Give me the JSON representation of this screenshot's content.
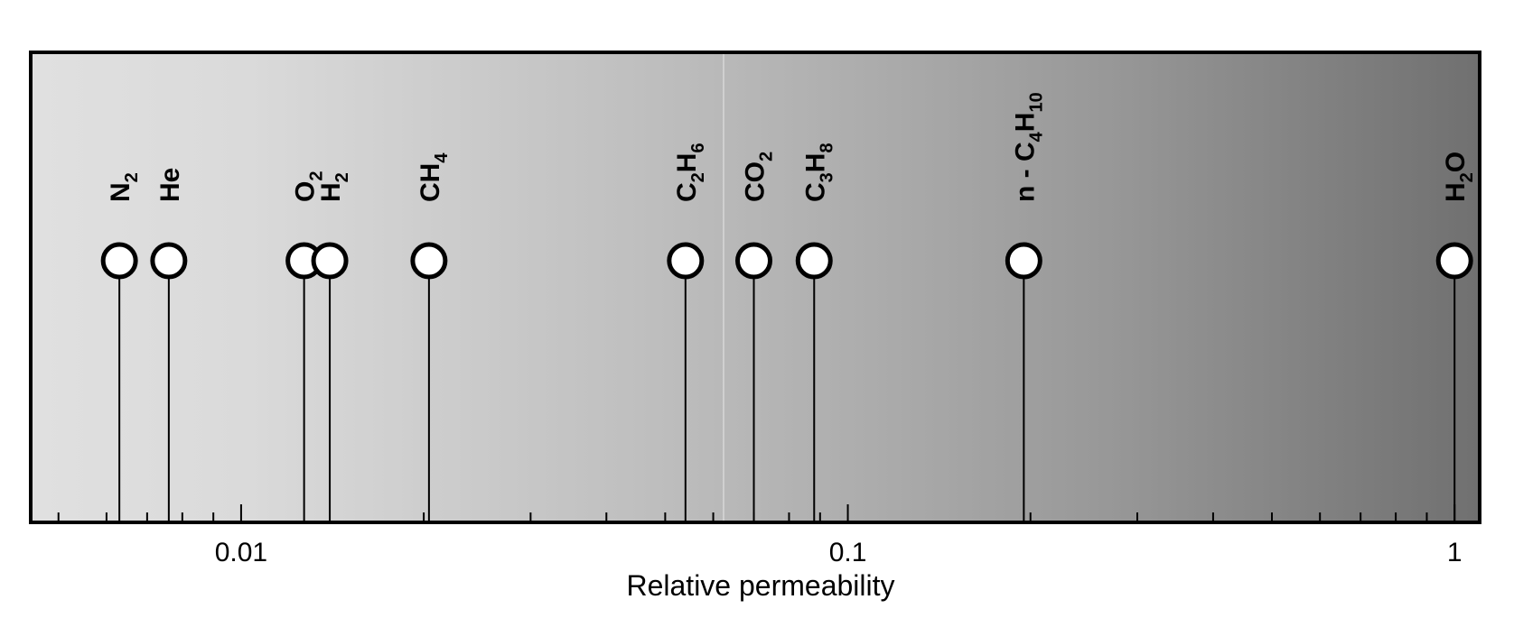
{
  "chart_data": {
    "type": "scatter",
    "x_scale": "log",
    "xlim": [
      0.0045,
      1.1
    ],
    "xlabel": "Relative permeability",
    "ylabel": "",
    "title": "",
    "grid": false,
    "x_ticks": [
      {
        "value": 0.01,
        "label": "0.01"
      },
      {
        "value": 0.1,
        "label": "0.1"
      },
      {
        "value": 1,
        "label": "1"
      }
    ],
    "points": [
      {
        "gas": "N2",
        "x": 0.0063,
        "parts": [
          [
            "N",
            ""
          ],
          [
            "2",
            "sub"
          ]
        ]
      },
      {
        "gas": "He",
        "x": 0.0076,
        "parts": [
          [
            "He",
            ""
          ]
        ]
      },
      {
        "gas": "O2",
        "x": 0.0127,
        "parts": [
          [
            "O",
            ""
          ],
          [
            "2",
            "sub"
          ]
        ]
      },
      {
        "gas": "H2",
        "x": 0.014,
        "parts": [
          [
            "H",
            ""
          ],
          [
            "2",
            "sub"
          ]
        ]
      },
      {
        "gas": "CH4",
        "x": 0.0204,
        "parts": [
          [
            "CH",
            ""
          ],
          [
            "4",
            "sub"
          ]
        ]
      },
      {
        "gas": "C2H6",
        "x": 0.054,
        "parts": [
          [
            "C",
            ""
          ],
          [
            "2",
            "sub"
          ],
          [
            "H",
            ""
          ],
          [
            "6",
            "sub"
          ]
        ]
      },
      {
        "gas": "CO2",
        "x": 0.07,
        "parts": [
          [
            "CO",
            ""
          ],
          [
            "2",
            "sub"
          ]
        ]
      },
      {
        "gas": "C3H8",
        "x": 0.088,
        "parts": [
          [
            "C",
            ""
          ],
          [
            "3",
            "sub"
          ],
          [
            "H",
            ""
          ],
          [
            "8",
            "sub"
          ]
        ]
      },
      {
        "gas": "n-C4H10",
        "x": 0.195,
        "parts": [
          [
            "n - C",
            ""
          ],
          [
            "4",
            "sub"
          ],
          [
            "H",
            ""
          ],
          [
            "10",
            "sub"
          ]
        ]
      },
      {
        "gas": "H2O",
        "x": 1.0,
        "parts": [
          [
            "H",
            ""
          ],
          [
            "2",
            "sub"
          ],
          [
            "O",
            ""
          ]
        ]
      }
    ],
    "colors": {
      "background_left": "#e0e0e0",
      "background_right": "#707070",
      "marker_fill": "#ffffff",
      "line": "#000000"
    }
  }
}
